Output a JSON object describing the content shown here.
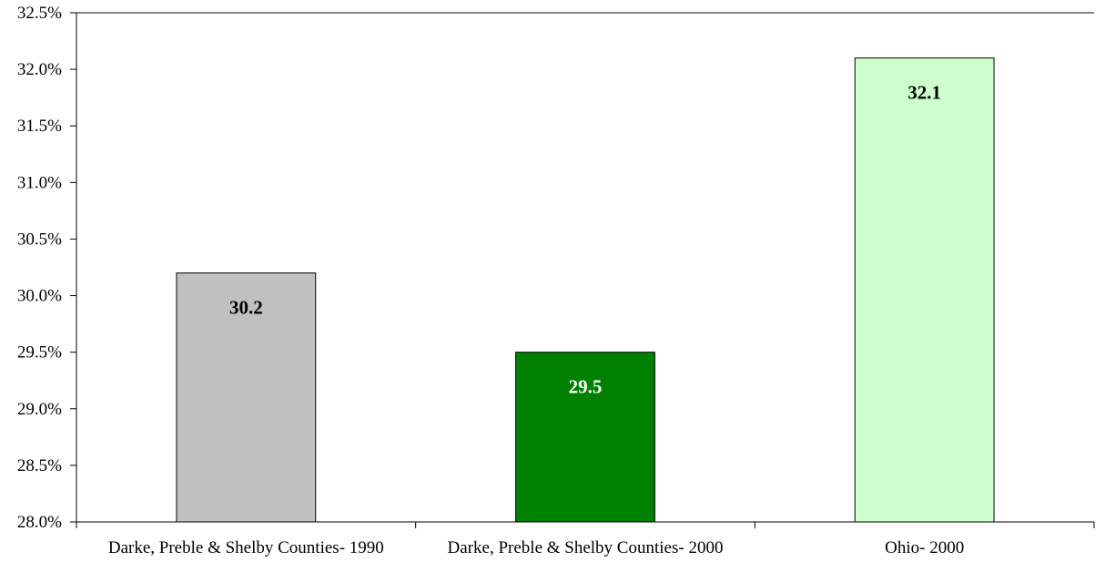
{
  "chart_data": {
    "type": "bar",
    "title": "",
    "xlabel": "",
    "ylabel": "",
    "categories": [
      "Darke, Preble & Shelby Counties- 1990",
      "Darke, Preble & Shelby Counties- 2000",
      "Ohio- 2000"
    ],
    "values": [
      30.2,
      29.5,
      32.1
    ],
    "data_labels": [
      "30.2",
      "29.5",
      "32.1"
    ],
    "ylim": [
      28.0,
      32.5
    ],
    "ytick_step": 0.5,
    "ytick_labels": [
      "28.0%",
      "28.5%",
      "29.0%",
      "29.5%",
      "30.0%",
      "30.5%",
      "31.0%",
      "31.5%",
      "32.0%",
      "32.5%"
    ],
    "bar_colors": [
      "#c0c0c0",
      "#008000",
      "#ccffcc"
    ],
    "data_label_colors": [
      "#000000",
      "#ffffff",
      "#000000"
    ],
    "grid": false,
    "legend": "none"
  }
}
